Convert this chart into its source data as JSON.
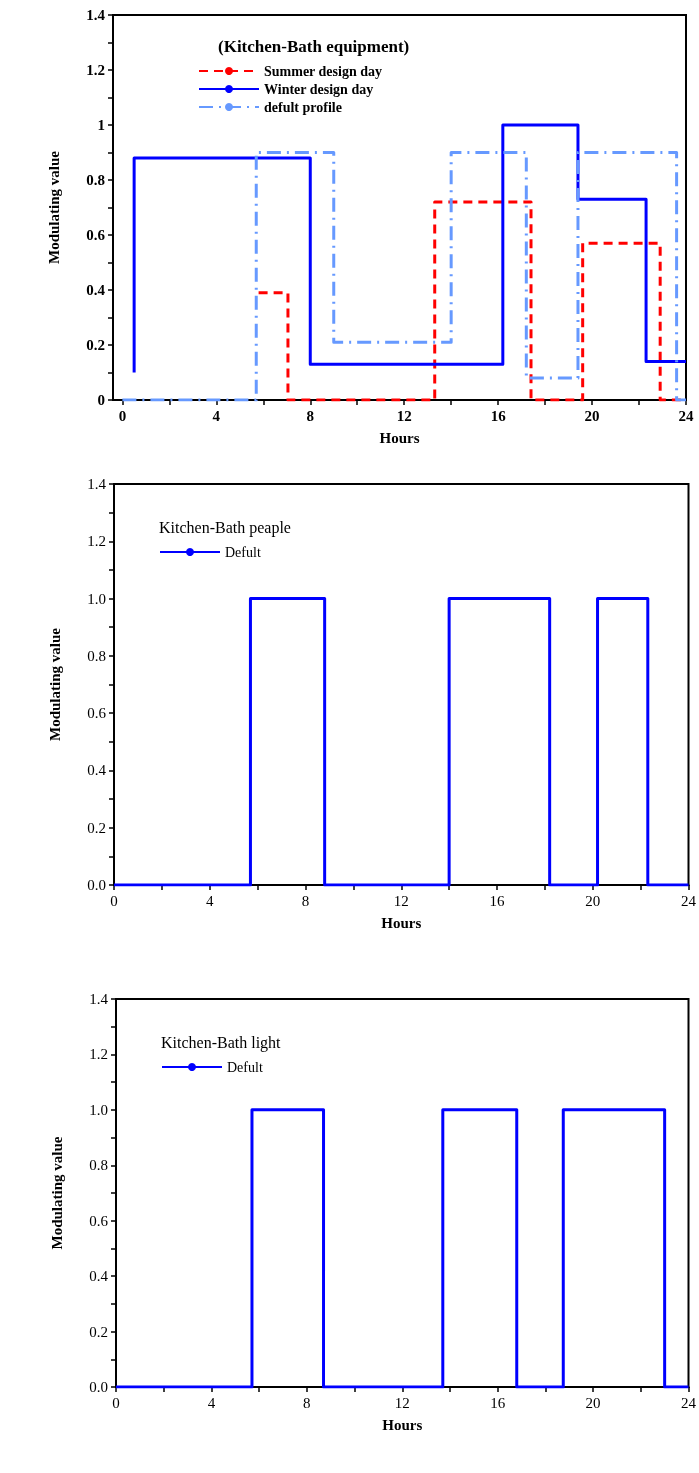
{
  "chart_data": [
    {
      "type": "step",
      "legend_title": "(Kitchen-Bath equipment)",
      "xlabel": "Hours",
      "ylabel": "Modulating value",
      "legend": "top left",
      "grid": false,
      "xlim": [
        -0.4,
        24
      ],
      "xticks": [
        0,
        {
          "value": 2,
          "label": null
        },
        4,
        {
          "value": 6,
          "label": null
        },
        8,
        {
          "value": 10,
          "label": null
        },
        12,
        {
          "value": 14,
          "label": null
        },
        16,
        {
          "value": 18,
          "label": null
        },
        20,
        {
          "value": 22,
          "label": null
        },
        24
      ],
      "ylim": [
        0,
        1.4
      ],
      "yticks": [
        0,
        {
          "value": 0.1,
          "label": null
        },
        0.2,
        {
          "value": 0.3,
          "label": null
        },
        0.4,
        {
          "value": 0.5,
          "label": null
        },
        0.6,
        {
          "value": 0.7,
          "label": null
        },
        0.8,
        {
          "value": 0.9,
          "label": null
        },
        1,
        {
          "value": 1.1,
          "label": null
        },
        1.2,
        {
          "value": 1.3,
          "label": null
        },
        1.4
      ],
      "series": [
        {
          "name": "Summer design day",
          "color": "#ff0000",
          "line_style": "dashed",
          "x": [
            5.8,
            7.05,
            13.3,
            17.4,
            19.6,
            22.9,
            24
          ],
          "values": [
            0.39,
            0,
            0.72,
            0,
            0.57,
            0,
            0
          ]
        },
        {
          "name": "Winter design day",
          "color": "#0000ff",
          "line_style": "solid",
          "x": [
            0.5,
            0.5,
            8,
            16.2,
            19.4,
            22.3,
            24
          ],
          "values": [
            0.1,
            0.88,
            0.13,
            1.0,
            0.73,
            0.14,
            0.14
          ]
        },
        {
          "name": "defult profile",
          "color": "#6699ff",
          "line_style": "dashdot",
          "x": [
            0,
            5.7,
            9.0,
            14.0,
            17.2,
            19.4,
            23.6,
            24
          ],
          "values": [
            0,
            0.9,
            0.21,
            0.9,
            0.08,
            0.9,
            0,
            0
          ]
        }
      ]
    },
    {
      "type": "step",
      "legend_title": "Kitchen-Bath peaple",
      "xlabel": "Hours",
      "ylabel": "Modulating value",
      "legend": "top left",
      "grid": false,
      "xlim": [
        0,
        24
      ],
      "xticks": [
        0,
        {
          "value": 2,
          "label": null
        },
        4,
        {
          "value": 6,
          "label": null
        },
        8,
        {
          "value": 10,
          "label": null
        },
        12,
        {
          "value": 14,
          "label": null
        },
        16,
        {
          "value": 18,
          "label": null
        },
        20,
        {
          "value": 22,
          "label": null
        },
        24
      ],
      "ylim": [
        0,
        1.4
      ],
      "yticks": [
        {
          "value": 0,
          "label": "0.0"
        },
        {
          "value": 0.1,
          "label": null
        },
        0.2,
        {
          "value": 0.3,
          "label": null
        },
        0.4,
        {
          "value": 0.5,
          "label": null
        },
        0.6,
        {
          "value": 0.7,
          "label": null
        },
        0.8,
        {
          "value": 0.9,
          "label": null
        },
        {
          "value": 1,
          "label": "1.0"
        },
        {
          "value": 1.1,
          "label": null
        },
        1.2,
        {
          "value": 1.3,
          "label": null
        },
        1.4
      ],
      "series": [
        {
          "name": "Defult",
          "color": "#0000ff",
          "line_style": "solid",
          "x": [
            0,
            5.7,
            8.8,
            14.0,
            18.2,
            18.2,
            20.2,
            22.3,
            24
          ],
          "values": [
            0,
            1,
            0,
            1,
            0.5,
            0,
            1,
            0,
            0
          ]
        }
      ]
    },
    {
      "type": "step",
      "legend_title": "Kitchen-Bath light",
      "xlabel": "Hours",
      "ylabel": "Modulating value",
      "legend": "top left",
      "grid": false,
      "xlim": [
        0,
        24
      ],
      "xticks": [
        0,
        {
          "value": 2,
          "label": null
        },
        4,
        {
          "value": 6,
          "label": null
        },
        8,
        {
          "value": 10,
          "label": null
        },
        12,
        {
          "value": 14,
          "label": null
        },
        16,
        {
          "value": 18,
          "label": null
        },
        20,
        {
          "value": 22,
          "label": null
        },
        24
      ],
      "ylim": [
        0,
        1.4
      ],
      "yticks": [
        {
          "value": 0,
          "label": "0.0"
        },
        {
          "value": 0.1,
          "label": null
        },
        0.2,
        {
          "value": 0.3,
          "label": null
        },
        0.4,
        {
          "value": 0.5,
          "label": null
        },
        0.6,
        {
          "value": 0.7,
          "label": null
        },
        0.8,
        {
          "value": 0.9,
          "label": null
        },
        {
          "value": 1,
          "label": "1.0"
        },
        {
          "value": 1.1,
          "label": null
        },
        1.2,
        {
          "value": 1.3,
          "label": null
        },
        1.4
      ],
      "series": [
        {
          "name": "Defult",
          "color": "#0000ff",
          "line_style": "solid",
          "x": [
            0,
            5.7,
            8.7,
            13.7,
            16.8,
            18.75,
            23.0,
            24
          ],
          "values": [
            0,
            1,
            0,
            1,
            0,
            1,
            0,
            0
          ]
        }
      ]
    }
  ]
}
